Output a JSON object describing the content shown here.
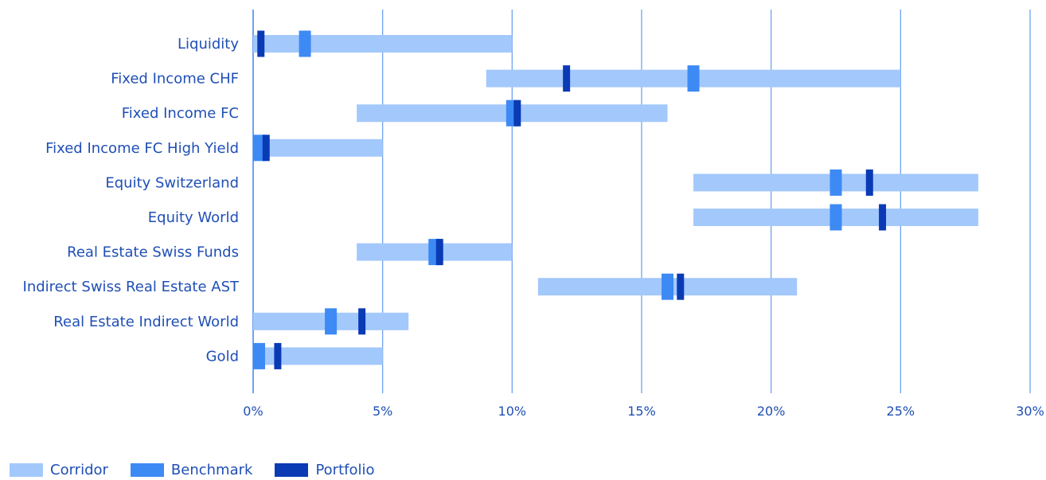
{
  "chart_data": {
    "type": "bar",
    "orientation": "horizontal",
    "categories": [
      "Liquidity",
      "Fixed Income CHF",
      "Fixed Income FC",
      "Fixed Income FC High Yield",
      "Equity Switzerland",
      "Equity World",
      "Real Estate Swiss Funds",
      "Indirect Swiss Real Estate AST",
      "Real Estate Indirect World",
      "Gold"
    ],
    "series": [
      {
        "name": "Corridor",
        "kind": "range",
        "color": "#a3c8fc",
        "ranges": [
          [
            0,
            10
          ],
          [
            9,
            25
          ],
          [
            4,
            16
          ],
          [
            0,
            5
          ],
          [
            17,
            28
          ],
          [
            17,
            28
          ],
          [
            4,
            10
          ],
          [
            11,
            21
          ],
          [
            0,
            6
          ],
          [
            0,
            5
          ]
        ]
      },
      {
        "name": "Benchmark",
        "kind": "marker",
        "color": "#3d8af5",
        "values": [
          2,
          17,
          10,
          0,
          22.5,
          22.5,
          7,
          16,
          3,
          0
        ]
      },
      {
        "name": "Portfolio",
        "kind": "marker",
        "color": "#0a3bb5",
        "values": [
          0.3,
          12.1,
          10.2,
          0.5,
          23.8,
          24.3,
          7.2,
          16.5,
          4.2,
          0.95
        ]
      }
    ],
    "xaxis": {
      "min": 0,
      "max": 30,
      "ticks": [
        0,
        5,
        10,
        15,
        20,
        25,
        30
      ],
      "tick_labels": [
        "0%",
        "5%",
        "10%",
        "15%",
        "20%",
        "25%",
        "30%"
      ]
    },
    "grid": "vertical",
    "grid_color": "#6fa3ef",
    "legend_position": "bottom-left"
  }
}
